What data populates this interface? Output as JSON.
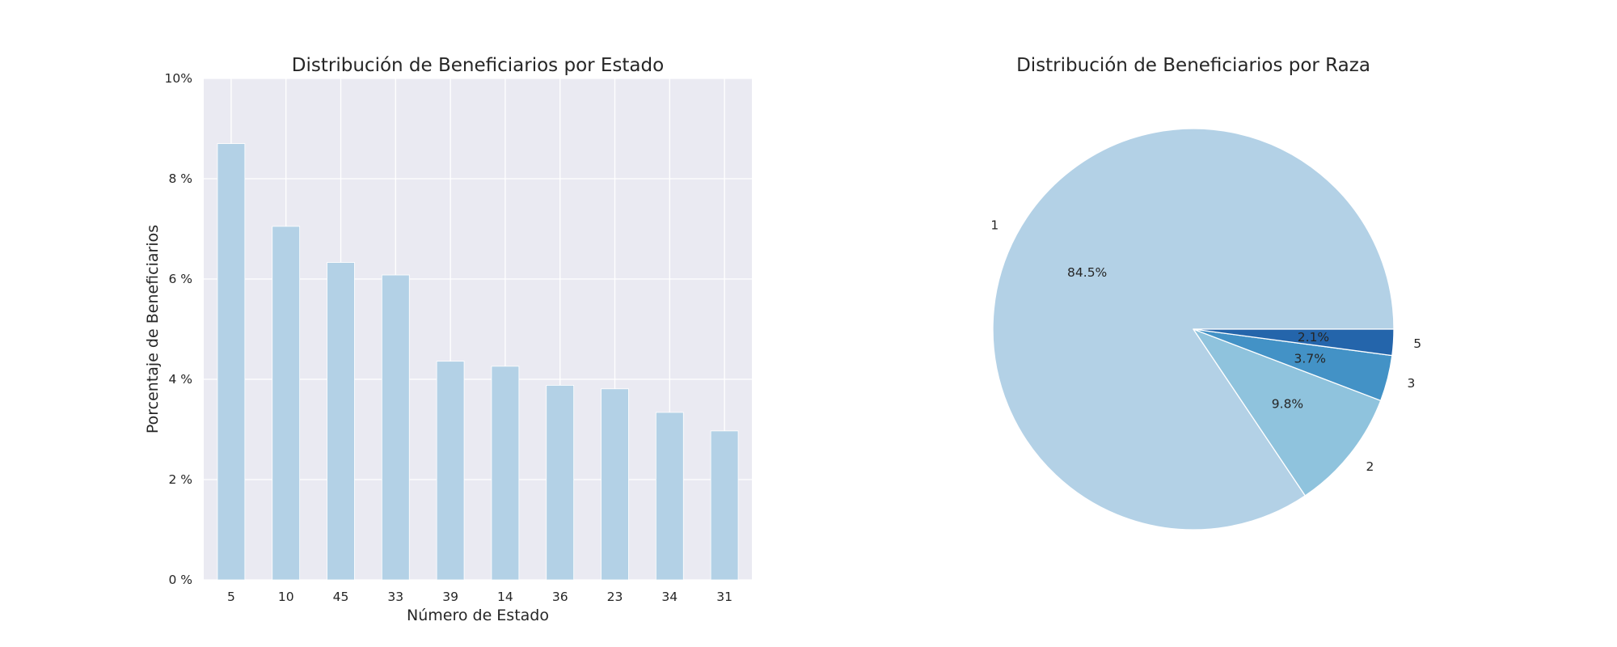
{
  "chart_data": [
    {
      "type": "bar",
      "title": "Distribución de Beneficiarios por Estado",
      "xlabel": "Número de Estado",
      "ylabel": "Porcentaje de Beneficiarios",
      "categories": [
        "5",
        "10",
        "45",
        "33",
        "39",
        "14",
        "36",
        "23",
        "34",
        "31"
      ],
      "values": [
        8.7,
        7.05,
        6.33,
        6.08,
        4.36,
        4.26,
        3.88,
        3.81,
        3.34,
        2.97
      ],
      "ylim": [
        0,
        10
      ],
      "yticks": [
        "0 %",
        "2 %",
        "4 %",
        "6 %",
        "8 %",
        "10%"
      ],
      "grid": true,
      "color": "#b3d1e6",
      "background": "#eaeaf2"
    },
    {
      "type": "pie",
      "title": "Distribución de Beneficiarios por Raza",
      "labels": [
        "1",
        "2",
        "3",
        "5"
      ],
      "values": [
        84.5,
        9.8,
        3.7,
        2.1
      ],
      "value_labels": [
        "84.5%",
        "9.8%",
        "3.7%",
        "2.1%"
      ],
      "colors": [
        "#b3d1e6",
        "#8fc3dd",
        "#4392c6",
        "#2465ab"
      ]
    }
  ]
}
